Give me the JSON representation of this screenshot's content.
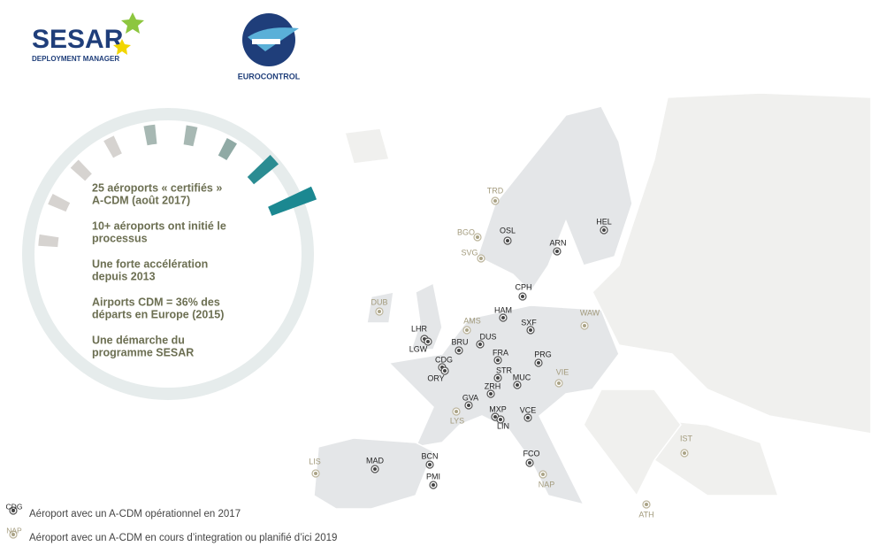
{
  "header": {
    "sesar_title": "SESAR",
    "sesar_subtitle": "DEPLOYMENT MANAGER",
    "eurocontrol": "EUROCONTROL"
  },
  "highlights": [
    [
      "25 aéroports « certifiés »",
      "A-CDM (août 2017)"
    ],
    [
      "10+ aéroports ont initié le",
      "processus"
    ],
    [
      "Une forte accélération",
      "depuis 2013"
    ],
    [
      "Airports CDM = 36% des",
      "départs en Europe (2015)"
    ],
    [
      "Une démarche du",
      "programme SESAR"
    ]
  ],
  "airports_operational": [
    "HEL",
    "OSL",
    "ARN",
    "CPH",
    "HAM",
    "SXF",
    "DUS",
    "BRU",
    "LHR",
    "LGW",
    "CDG",
    "ORY",
    "FRA",
    "PRG",
    "STR",
    "MUC",
    "ZRH",
    "GVA",
    "MXP",
    "LIN",
    "VCE",
    "MAD",
    "BCN",
    "PMI",
    "FCO"
  ],
  "airports_planned": [
    "TRD",
    "BGO",
    "SVG",
    "DUB",
    "AMS",
    "WAW",
    "VIE",
    "LYS",
    "IST",
    "LIS",
    "NAP",
    "ATH"
  ],
  "legend": [
    {
      "code": "CDG",
      "text": "Aéroport avec un A-CDM opérationnel en 2017"
    },
    {
      "code": "NAP",
      "text": "Aéroport avec un A-CDM en cours d’integration ou planifié d’ici 2019"
    }
  ]
}
